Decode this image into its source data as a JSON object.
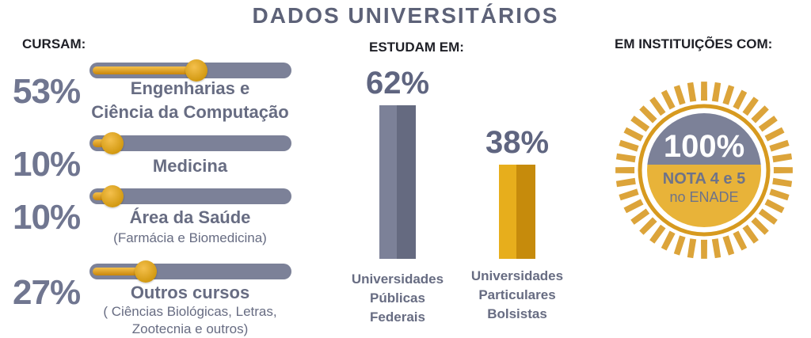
{
  "title": "DADOS UNIVERSITÁRIOS",
  "sections": {
    "cursam": "CURSAM:",
    "estudam": "ESTUDAM EM:",
    "instituicoes": "EM INSTITUIÇÕES COM:"
  },
  "colors": {
    "gold": "#e1a31b",
    "gold_dark": "#c8860b",
    "slate": "#7c8198",
    "slate_dark": "#656a80",
    "text": "#676c82"
  },
  "chart_data": [
    {
      "type": "bar",
      "title": "CURSAM:",
      "orientation": "horizontal",
      "xlim": [
        0,
        100
      ],
      "categories": [
        "Engenharias e Ciência da Computação",
        "Medicina",
        "Área da Saúde (Farmácia e Biomedicina)",
        "Outros cursos ( Ciências Biológicas, Letras, Zootecnia e outros)"
      ],
      "values": [
        53,
        10,
        10,
        27
      ],
      "items": [
        {
          "value": 53,
          "pct_text": "53%",
          "label_lines": [
            "Engenharias e",
            "Ciência da Computação"
          ],
          "sub_lines": []
        },
        {
          "value": 10,
          "pct_text": "10%",
          "label_lines": [
            "Medicina"
          ],
          "sub_lines": []
        },
        {
          "value": 10,
          "pct_text": "10%",
          "label_lines": [
            "Área da Saúde"
          ],
          "sub_lines": [
            "(Farmácia e Biomedicina)"
          ]
        },
        {
          "value": 27,
          "pct_text": "27%",
          "label_lines": [
            "Outros cursos"
          ],
          "sub_lines": [
            "( Ciências Biológicas, Letras,",
            "Zootecnia e outros)"
          ]
        }
      ]
    },
    {
      "type": "bar",
      "title": "ESTUDAM EM:",
      "ylim": [
        0,
        62
      ],
      "categories": [
        "Universidades Públicas Federais",
        "Universidades Particulares Bolsistas"
      ],
      "values": [
        62,
        38
      ],
      "items": [
        {
          "value": 62,
          "value_text": "62%",
          "label_lines": [
            "Universidades",
            "Públicas",
            "Federais"
          ],
          "color": "#7c8198",
          "shade": "#656a80"
        },
        {
          "value": 38,
          "value_text": "38%",
          "label_lines": [
            "Universidades",
            "Particulares",
            "Bolsistas"
          ],
          "color": "#e7ae1c",
          "shade": "#c68b0c"
        }
      ]
    },
    {
      "type": "pie",
      "title": "EM INSTITUIÇÕES COM:",
      "values": [
        100
      ],
      "value_text": "100%",
      "label_line1": "NOTA 4 e 5",
      "label_line2": "no ENADE"
    }
  ]
}
